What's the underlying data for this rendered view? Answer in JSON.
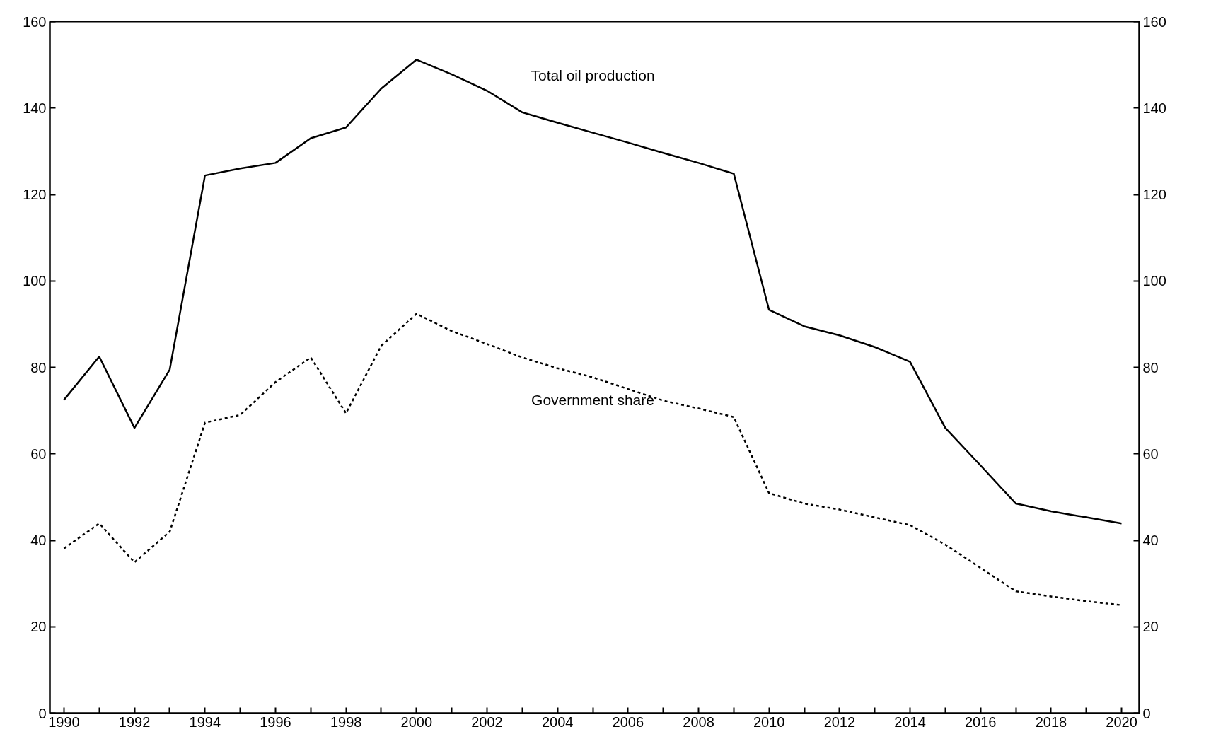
{
  "chart_data": {
    "type": "line",
    "x": [
      1990,
      1991,
      1992,
      1993,
      1994,
      1995,
      1996,
      1997,
      1998,
      1999,
      2000,
      2001,
      2002,
      2003,
      2004,
      2005,
      2006,
      2007,
      2008,
      2009,
      2010,
      2011,
      2012,
      2013,
      2014,
      2015,
      2016,
      2017,
      2018,
      2019,
      2020
    ],
    "series": [
      {
        "name": "Total oil production",
        "color": "#000000",
        "line_style": "solid",
        "values": [
          72.5,
          82.5,
          66,
          79.5,
          124.4,
          126,
          127.3,
          133,
          135.5,
          144.5,
          151.2,
          147.8,
          144,
          139,
          136.6,
          134.3,
          132,
          129.6,
          127.3,
          124.8,
          93.3,
          89.5,
          87.4,
          84.7,
          81.3,
          66,
          57.3,
          48.5,
          46.7,
          45.3,
          43.9
        ]
      },
      {
        "name": "Government share",
        "color": "#000000",
        "line_style": "dashed",
        "values": [
          38.1,
          43.9,
          34.9,
          42,
          67.2,
          69,
          76.6,
          82.3,
          69.4,
          85,
          92.4,
          88.4,
          85.4,
          82.3,
          79.8,
          77.7,
          75,
          72.3,
          70.5,
          68.5,
          50.9,
          48.5,
          47.1,
          45.3,
          43.5,
          39,
          33.6,
          28.2,
          27,
          25.9,
          25
        ]
      }
    ],
    "xlim": [
      1989.6,
      2020.5
    ],
    "xticks": [
      1990,
      {
        "value": 1991,
        "label": null
      },
      1992,
      {
        "value": 1993,
        "label": null
      },
      1994,
      {
        "value": 1995,
        "label": null
      },
      1996,
      {
        "value": 1997,
        "label": null
      },
      1998,
      {
        "value": 1999,
        "label": null
      },
      2000,
      {
        "value": 2001,
        "label": null
      },
      2002,
      {
        "value": 2003,
        "label": null
      },
      2004,
      {
        "value": 2005,
        "label": null
      },
      2006,
      {
        "value": 2007,
        "label": null
      },
      2008,
      {
        "value": 2009,
        "label": null
      },
      2010,
      {
        "value": 2011,
        "label": null
      },
      2012,
      {
        "value": 2013,
        "label": null
      },
      2014,
      {
        "value": 2015,
        "label": null
      },
      2016,
      {
        "value": 2017,
        "label": null
      },
      2018,
      {
        "value": 2019,
        "label": null
      },
      2020
    ],
    "ylim": [
      0,
      160
    ],
    "yticks": [
      0,
      20,
      40,
      60,
      80,
      100,
      120,
      140,
      160
    ],
    "y2lim": [
      0,
      160
    ],
    "y2ticks": [
      0,
      20,
      40,
      60,
      80,
      100,
      120,
      140,
      160
    ],
    "grid": false
  }
}
